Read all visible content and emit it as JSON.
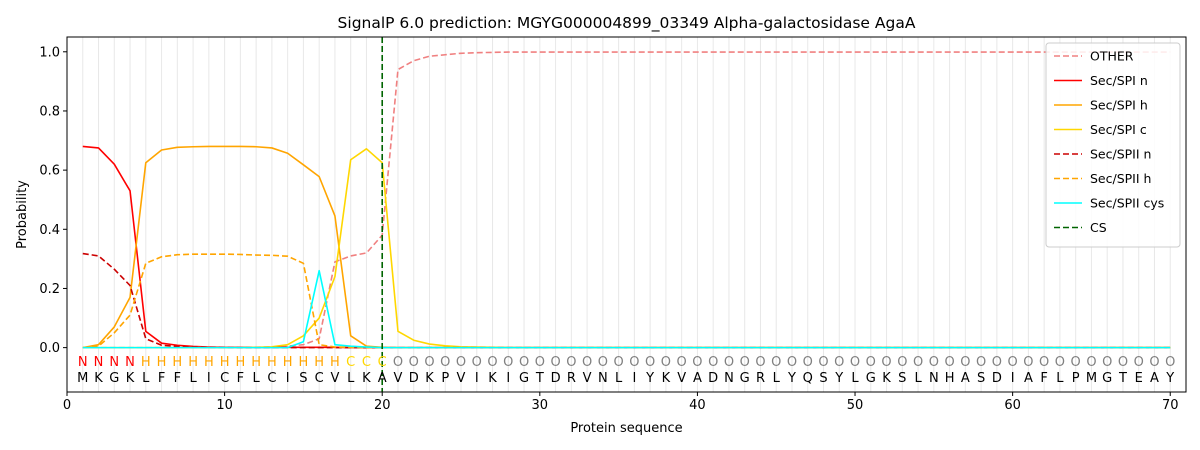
{
  "chart_data": {
    "type": "line",
    "title": "SignalP 6.0 prediction: MGYG000004899_03349 Alpha-galactosidase AgaA",
    "xlabel": "Protein sequence",
    "ylabel": "Probability",
    "xlim": [
      0,
      71
    ],
    "ylim": [
      -0.15,
      1.05
    ],
    "x_ticks": [
      0,
      10,
      20,
      30,
      40,
      50,
      60,
      70
    ],
    "y_ticks": [
      0.0,
      0.2,
      0.4,
      0.6,
      0.8,
      1.0
    ],
    "y_tick_labels": [
      "0.0",
      "0.2",
      "0.4",
      "0.6",
      "0.8",
      "1.0"
    ],
    "grid": "vertical lines at each residue",
    "legend_position": "top-right",
    "cleavage_site": 20,
    "sequence": [
      "M",
      "K",
      "G",
      "K",
      "L",
      "F",
      "F",
      "L",
      "I",
      "C",
      "F",
      "L",
      "C",
      "I",
      "S",
      "C",
      "V",
      "L",
      "K",
      "A",
      "V",
      "D",
      "K",
      "P",
      "V",
      "I",
      "K",
      "I",
      "G",
      "T",
      "D",
      "R",
      "V",
      "N",
      "L",
      "I",
      "Y",
      "K",
      "V",
      "A",
      "D",
      "N",
      "G",
      "R",
      "L",
      "Y",
      "Q",
      "S",
      "Y",
      "L",
      "G",
      "K",
      "S",
      "L",
      "N",
      "H",
      "A",
      "S",
      "D",
      "I",
      "A",
      "F",
      "L",
      "P",
      "M",
      "G",
      "T",
      "E",
      "A",
      "Y"
    ],
    "annotations": [
      "N",
      "N",
      "N",
      "N",
      "H",
      "H",
      "H",
      "H",
      "H",
      "H",
      "H",
      "H",
      "H",
      "H",
      "H",
      "H",
      "H",
      "C",
      "C",
      "C",
      "O",
      "O",
      "O",
      "O",
      "O",
      "O",
      "O",
      "O",
      "O",
      "O",
      "O",
      "O",
      "O",
      "O",
      "O",
      "O",
      "O",
      "O",
      "O",
      "O",
      "O",
      "O",
      "O",
      "O",
      "O",
      "O",
      "O",
      "O",
      "O",
      "O",
      "O",
      "O",
      "O",
      "O",
      "O",
      "O",
      "O",
      "O",
      "O",
      "O",
      "O",
      "O",
      "O",
      "O",
      "O",
      "O",
      "O",
      "O",
      "O",
      "O"
    ],
    "annotation_colors": {
      "N": "#ff0000",
      "H": "#ffa500",
      "C": "#ffd700",
      "O": "#808080"
    },
    "series": [
      {
        "name": "OTHER",
        "color": "#f08080",
        "dash": true,
        "values": [
          0.0,
          0.0,
          0.0,
          0.0,
          0.0,
          0.0,
          0.0,
          0.0,
          0.0,
          0.0,
          0.0,
          0.0,
          0.0,
          0.005,
          0.01,
          0.03,
          0.29,
          0.31,
          0.32,
          0.38,
          0.94,
          0.97,
          0.985,
          0.99,
          0.995,
          0.997,
          0.998,
          0.999,
          0.999,
          0.999,
          0.999,
          0.999,
          0.999,
          0.999,
          0.999,
          0.999,
          0.999,
          0.999,
          0.999,
          0.999,
          0.999,
          0.999,
          0.999,
          0.999,
          0.999,
          0.999,
          0.999,
          0.999,
          0.999,
          0.999,
          0.999,
          0.999,
          0.999,
          0.999,
          0.999,
          0.999,
          0.999,
          0.999,
          0.999,
          0.999,
          0.999,
          0.999,
          0.999,
          0.999,
          0.999,
          0.999,
          0.999,
          0.999,
          0.999,
          0.999
        ]
      },
      {
        "name": "Sec/SPI n",
        "color": "#ff0000",
        "dash": false,
        "values": [
          0.68,
          0.675,
          0.62,
          0.53,
          0.055,
          0.015,
          0.008,
          0.004,
          0.002,
          0.001,
          0.001,
          0.001,
          0.001,
          0.001,
          0.001,
          0.001,
          0.001,
          0.0,
          0.0,
          0.0,
          0.0,
          0.0,
          0.0,
          0.0,
          0.0,
          0.0,
          0.0,
          0.0,
          0.0,
          0.0,
          0.0,
          0.0,
          0.0,
          0.0,
          0.0,
          0.0,
          0.0,
          0.0,
          0.0,
          0.0,
          0.0,
          0.0,
          0.0,
          0.0,
          0.0,
          0.0,
          0.0,
          0.0,
          0.0,
          0.0,
          0.0,
          0.0,
          0.0,
          0.0,
          0.0,
          0.0,
          0.0,
          0.0,
          0.0,
          0.0,
          0.0,
          0.0,
          0.0,
          0.0,
          0.0,
          0.0,
          0.0,
          0.0,
          0.0,
          0.0
        ]
      },
      {
        "name": "Sec/SPI h",
        "color": "#ffa500",
        "dash": false,
        "values": [
          0.0,
          0.01,
          0.07,
          0.17,
          0.625,
          0.668,
          0.677,
          0.679,
          0.68,
          0.68,
          0.68,
          0.679,
          0.675,
          0.657,
          0.618,
          0.578,
          0.445,
          0.04,
          0.005,
          0.001,
          0.0,
          0.0,
          0.0,
          0.0,
          0.0,
          0.0,
          0.0,
          0.0,
          0.0,
          0.0,
          0.0,
          0.0,
          0.0,
          0.0,
          0.0,
          0.0,
          0.0,
          0.0,
          0.0,
          0.0,
          0.0,
          0.0,
          0.0,
          0.0,
          0.0,
          0.0,
          0.0,
          0.0,
          0.0,
          0.0,
          0.0,
          0.0,
          0.0,
          0.0,
          0.0,
          0.0,
          0.0,
          0.0,
          0.0,
          0.0,
          0.0,
          0.0,
          0.0,
          0.0,
          0.0,
          0.0,
          0.0,
          0.0,
          0.0,
          0.0
        ]
      },
      {
        "name": "Sec/SPI c",
        "color": "#ffd700",
        "dash": false,
        "values": [
          0.0,
          0.0,
          0.0,
          0.0,
          0.0,
          0.0,
          0.0,
          0.0,
          0.0,
          0.0,
          0.0,
          0.001,
          0.003,
          0.01,
          0.04,
          0.1,
          0.24,
          0.635,
          0.672,
          0.625,
          0.055,
          0.025,
          0.012,
          0.006,
          0.003,
          0.002,
          0.001,
          0.0,
          0.0,
          0.0,
          0.0,
          0.0,
          0.0,
          0.0,
          0.0,
          0.0,
          0.0,
          0.0,
          0.0,
          0.0,
          0.0,
          0.0,
          0.0,
          0.0,
          0.0,
          0.0,
          0.0,
          0.0,
          0.0,
          0.0,
          0.0,
          0.0,
          0.0,
          0.0,
          0.0,
          0.0,
          0.0,
          0.0,
          0.0,
          0.0,
          0.0,
          0.0,
          0.0,
          0.0,
          0.0,
          0.0,
          0.0,
          0.0,
          0.0,
          0.0
        ]
      },
      {
        "name": "Sec/SPII n",
        "color": "#cc0000",
        "dash": true,
        "values": [
          0.318,
          0.31,
          0.265,
          0.21,
          0.03,
          0.008,
          0.004,
          0.002,
          0.001,
          0.001,
          0.0,
          0.0,
          0.0,
          0.0,
          0.0,
          0.0,
          0.0,
          0.0,
          0.0,
          0.0,
          0.0,
          0.0,
          0.0,
          0.0,
          0.0,
          0.0,
          0.0,
          0.0,
          0.0,
          0.0,
          0.0,
          0.0,
          0.0,
          0.0,
          0.0,
          0.0,
          0.0,
          0.0,
          0.0,
          0.0,
          0.0,
          0.0,
          0.0,
          0.0,
          0.0,
          0.0,
          0.0,
          0.0,
          0.0,
          0.0,
          0.0,
          0.0,
          0.0,
          0.0,
          0.0,
          0.0,
          0.0,
          0.0,
          0.0,
          0.0,
          0.0,
          0.0,
          0.0,
          0.0,
          0.0,
          0.0,
          0.0,
          0.0,
          0.0,
          0.0
        ]
      },
      {
        "name": "Sec/SPII h",
        "color": "#ffa500",
        "dash": true,
        "values": [
          0.0,
          0.005,
          0.05,
          0.11,
          0.285,
          0.307,
          0.314,
          0.316,
          0.316,
          0.316,
          0.315,
          0.313,
          0.312,
          0.309,
          0.285,
          0.01,
          0.002,
          0.001,
          0.0,
          0.0,
          0.0,
          0.0,
          0.0,
          0.0,
          0.0,
          0.0,
          0.0,
          0.0,
          0.0,
          0.0,
          0.0,
          0.0,
          0.0,
          0.0,
          0.0,
          0.0,
          0.0,
          0.0,
          0.0,
          0.0,
          0.0,
          0.0,
          0.0,
          0.0,
          0.0,
          0.0,
          0.0,
          0.0,
          0.0,
          0.0,
          0.0,
          0.0,
          0.0,
          0.0,
          0.0,
          0.0,
          0.0,
          0.0,
          0.0,
          0.0,
          0.0,
          0.0,
          0.0,
          0.0,
          0.0,
          0.0,
          0.0,
          0.0,
          0.0,
          0.0
        ]
      },
      {
        "name": "Sec/SPII cys",
        "color": "#00ffff",
        "dash": false,
        "values": [
          0.0,
          0.0,
          0.0,
          0.0,
          0.0,
          0.0,
          0.0,
          0.0,
          0.0,
          0.0,
          0.0,
          0.0,
          0.0,
          0.0,
          0.02,
          0.26,
          0.01,
          0.005,
          0.002,
          0.0,
          0.0,
          0.0,
          0.0,
          0.0,
          0.0,
          0.0,
          0.0,
          0.0,
          0.0,
          0.0,
          0.0,
          0.0,
          0.0,
          0.0,
          0.0,
          0.0,
          0.0,
          0.0,
          0.0,
          0.0,
          0.0,
          0.0,
          0.0,
          0.0,
          0.0,
          0.0,
          0.0,
          0.0,
          0.0,
          0.0,
          0.0,
          0.0,
          0.0,
          0.0,
          0.0,
          0.0,
          0.0,
          0.0,
          0.0,
          0.0,
          0.0,
          0.0,
          0.0,
          0.0,
          0.0,
          0.0,
          0.0,
          0.0,
          0.0,
          0.0
        ]
      }
    ],
    "cs_legend": {
      "name": "CS",
      "color": "#006400"
    }
  }
}
